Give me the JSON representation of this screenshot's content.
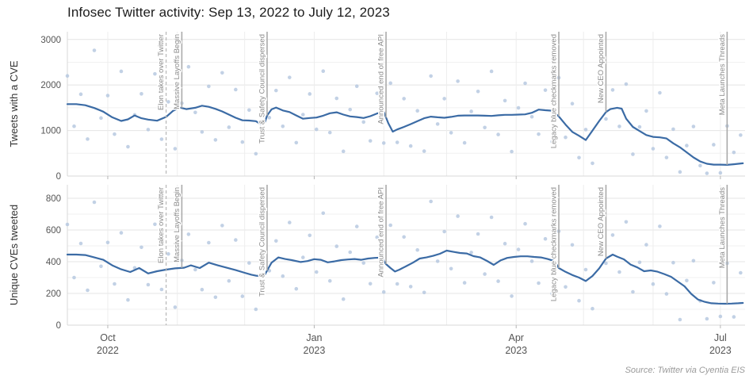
{
  "title": "Infosec Twitter activity: Sep 13, 2022 to July 12, 2023",
  "source": "Source: Twitter via Cyentia EIS",
  "colors": {
    "trend": "#3b6ba5",
    "points": "#b3c5de",
    "event_line": "#aaaaaa",
    "event_line_dashed": "#bbbbbb",
    "event_label": "#8a8a8a",
    "grid_major": "#e4e4e4",
    "grid_minor": "#f1f1f1",
    "grid_vertical": "#ededed",
    "spine": "#d8d8d8",
    "tick_mark": "#b5b5b5",
    "tick_label": "#555555",
    "axis_title": "#333333",
    "title_color": "#1c1c1c",
    "source_color": "#9a9a9a"
  },
  "x_axis": {
    "start_date": "2022-09-13",
    "end_date": "2023-07-12",
    "total_days": 302,
    "month_start_days": [
      18,
      49,
      79,
      110,
      141,
      169,
      200,
      230,
      261,
      291
    ],
    "major_ticks": [
      {
        "day": 18,
        "month": "Oct",
        "year": "2022"
      },
      {
        "day": 110,
        "month": "Jan",
        "year": "2023"
      },
      {
        "day": 200,
        "month": "Apr",
        "year": "2023"
      },
      {
        "day": 291,
        "month": "Jul",
        "year": "2023"
      }
    ]
  },
  "events": [
    {
      "label": "Elon takes over Twitter",
      "day": 44,
      "line": "dashed"
    },
    {
      "label": "Massive Layoffs Begin",
      "day": 51,
      "line": "solid"
    },
    {
      "label": "Trust & Safety Council dispersed",
      "day": 89,
      "line": "solid"
    },
    {
      "label": "Announced end of free API",
      "day": 142,
      "line": "solid"
    },
    {
      "label": "Legacy blue checkmarks removed",
      "day": 219,
      "line": "solid"
    },
    {
      "label": "New CEO Appointed",
      "day": 240,
      "line": "solid"
    },
    {
      "label": "Meta Launches Threads",
      "day": 294,
      "line": "solid"
    }
  ],
  "chart_data": [
    {
      "type": "scatter+line",
      "name": "tweets-with-a-cve",
      "ylabel": "Tweets with a CVE",
      "ylim": [
        0,
        3170
      ],
      "yticks": [
        0,
        1000,
        2000,
        3000
      ],
      "yminor_step": 500,
      "trend": {
        "x": [
          0,
          4,
          8,
          12,
          16,
          20,
          24,
          27,
          30,
          33,
          36,
          40,
          44,
          47,
          50,
          53,
          57,
          60,
          63,
          66,
          69,
          72,
          75,
          78,
          81,
          84,
          86,
          88,
          89,
          91,
          93,
          96,
          99,
          102,
          105,
          108,
          111,
          114,
          117,
          120,
          123,
          126,
          129,
          132,
          135,
          138,
          141,
          143,
          145,
          147,
          150,
          153,
          156,
          159,
          162,
          165,
          168,
          171,
          174,
          177,
          180,
          183,
          186,
          189,
          192,
          195,
          198,
          201,
          204,
          207,
          210,
          213,
          216,
          219,
          222,
          225,
          228,
          231,
          234,
          237,
          240,
          242,
          245,
          247,
          249,
          252,
          255,
          258,
          261,
          264,
          267,
          270,
          273,
          276,
          279,
          282,
          285,
          288,
          291,
          294,
          297,
          301
        ],
        "y": [
          1580,
          1580,
          1555,
          1495,
          1415,
          1290,
          1210,
          1245,
          1330,
          1270,
          1240,
          1215,
          1300,
          1430,
          1505,
          1470,
          1500,
          1545,
          1520,
          1475,
          1420,
          1350,
          1280,
          1225,
          1220,
          1205,
          1145,
          1180,
          1330,
          1465,
          1505,
          1440,
          1405,
          1330,
          1260,
          1275,
          1285,
          1325,
          1380,
          1400,
          1350,
          1310,
          1295,
          1275,
          1315,
          1375,
          1410,
          1160,
          975,
          1025,
          1080,
          1140,
          1205,
          1270,
          1305,
          1290,
          1280,
          1300,
          1325,
          1330,
          1330,
          1330,
          1325,
          1320,
          1335,
          1345,
          1345,
          1350,
          1355,
          1390,
          1460,
          1445,
          1435,
          1310,
          1130,
          970,
          885,
          790,
          1000,
          1210,
          1405,
          1470,
          1500,
          1480,
          1260,
          1080,
          990,
          900,
          860,
          850,
          825,
          720,
          630,
          520,
          410,
          320,
          270,
          250,
          250,
          245,
          260,
          280
        ]
      },
      "points": [
        [
          0,
          2200
        ],
        [
          3,
          1094
        ],
        [
          6,
          1797
        ],
        [
          9,
          812
        ],
        [
          12,
          2760
        ],
        [
          15,
          1274
        ],
        [
          18,
          1767
        ],
        [
          21,
          920
        ],
        [
          24,
          2300
        ],
        [
          27,
          644
        ],
        [
          30,
          1344
        ],
        [
          33,
          1806
        ],
        [
          36,
          1021
        ],
        [
          39,
          2244
        ],
        [
          42,
          810
        ],
        [
          45,
          1630
        ],
        [
          48,
          600
        ],
        [
          51,
          1601
        ],
        [
          54,
          2400
        ],
        [
          57,
          1397
        ],
        [
          60,
          969
        ],
        [
          63,
          1970
        ],
        [
          66,
          794
        ],
        [
          69,
          2268
        ],
        [
          72,
          1072
        ],
        [
          75,
          1899
        ],
        [
          78,
          747
        ],
        [
          81,
          1449
        ],
        [
          84,
          490
        ],
        [
          87,
          2211
        ],
        [
          90,
          1283
        ],
        [
          93,
          1879
        ],
        [
          96,
          1092
        ],
        [
          99,
          2166
        ],
        [
          102,
          733
        ],
        [
          105,
          1350
        ],
        [
          108,
          1803
        ],
        [
          111,
          1026
        ],
        [
          114,
          2304
        ],
        [
          117,
          956
        ],
        [
          120,
          1706
        ],
        [
          123,
          543
        ],
        [
          126,
          1460
        ],
        [
          129,
          1973
        ],
        [
          132,
          1186
        ],
        [
          135,
          773
        ],
        [
          138,
          1817
        ],
        [
          141,
          724
        ],
        [
          144,
          2041
        ],
        [
          147,
          740
        ],
        [
          150,
          1700
        ],
        [
          153,
          660
        ],
        [
          156,
          1433
        ],
        [
          159,
          547
        ],
        [
          162,
          2196
        ],
        [
          165,
          1143
        ],
        [
          168,
          1700
        ],
        [
          171,
          951
        ],
        [
          174,
          2083
        ],
        [
          177,
          730
        ],
        [
          180,
          1420
        ],
        [
          183,
          1859
        ],
        [
          186,
          1066
        ],
        [
          189,
          2300
        ],
        [
          192,
          913
        ],
        [
          195,
          1656
        ],
        [
          198,
          537
        ],
        [
          201,
          1497
        ],
        [
          204,
          2037
        ],
        [
          207,
          1302
        ],
        [
          210,
          920
        ],
        [
          213,
          1887
        ],
        [
          216,
          754
        ],
        [
          219,
          2160
        ],
        [
          222,
          850
        ],
        [
          225,
          1590
        ],
        [
          228,
          404
        ],
        [
          231,
          1020
        ],
        [
          234,
          280
        ],
        [
          237,
          2100
        ],
        [
          240,
          1255
        ],
        [
          243,
          1891
        ],
        [
          246,
          1090
        ],
        [
          249,
          2020
        ],
        [
          252,
          480
        ],
        [
          255,
          1080
        ],
        [
          258,
          1430
        ],
        [
          261,
          601
        ],
        [
          264,
          1828
        ],
        [
          267,
          407
        ],
        [
          270,
          1030
        ],
        [
          273,
          90
        ],
        [
          276,
          669
        ],
        [
          279,
          1088
        ],
        [
          282,
          229
        ],
        [
          285,
          60
        ],
        [
          288,
          689
        ],
        [
          291,
          70
        ],
        [
          294,
          1100
        ],
        [
          297,
          520
        ],
        [
          300,
          899
        ]
      ]
    },
    {
      "type": "scatter+line",
      "name": "unique-cves-tweeted",
      "ylabel": "Unique CVEs tweeted",
      "ylim": [
        0,
        885
      ],
      "yticks": [
        0,
        200,
        400,
        600,
        800
      ],
      "yminor_step": 100,
      "trend": {
        "x": [
          0,
          4,
          8,
          12,
          16,
          20,
          24,
          28,
          32,
          36,
          40,
          44,
          48,
          52,
          55,
          59,
          63,
          67,
          71,
          75,
          79,
          82,
          84,
          86,
          88,
          91,
          94,
          97,
          100,
          104,
          107,
          110,
          113,
          116,
          119,
          122,
          125,
          128,
          131,
          134,
          137,
          140,
          142,
          144,
          146,
          148,
          151,
          154,
          157,
          160,
          163,
          166,
          169,
          172,
          175,
          178,
          181,
          184,
          187,
          190,
          193,
          196,
          199,
          202,
          205,
          208,
          211,
          214,
          217,
          219,
          222,
          225,
          228,
          231,
          234,
          237,
          240,
          243,
          245,
          248,
          251,
          254,
          257,
          260,
          263,
          266,
          269,
          272,
          275,
          278,
          281,
          284,
          287,
          290,
          293,
          296,
          299,
          301
        ],
        "y": [
          445,
          445,
          442,
          427,
          412,
          377,
          352,
          335,
          360,
          326,
          340,
          350,
          358,
          362,
          377,
          360,
          394,
          377,
          362,
          347,
          330,
          318,
          312,
          310,
          318,
          394,
          427,
          417,
          410,
          398,
          404,
          416,
          412,
          396,
          402,
          410,
          414,
          417,
          412,
          420,
          424,
          426,
          385,
          360,
          338,
          350,
          372,
          394,
          420,
          427,
          437,
          450,
          470,
          462,
          455,
          452,
          435,
          427,
          405,
          380,
          408,
          424,
          430,
          434,
          434,
          430,
          427,
          417,
          404,
          360,
          336,
          316,
          300,
          278,
          310,
          358,
          420,
          445,
          432,
          415,
          382,
          364,
          340,
          345,
          337,
          322,
          305,
          275,
          245,
          197,
          162,
          147,
          138,
          136,
          135,
          136,
          138,
          140
        ]
      },
      "points": [
        [
          0,
          635
        ],
        [
          3,
          300
        ],
        [
          6,
          515
        ],
        [
          9,
          220
        ],
        [
          12,
          775
        ],
        [
          15,
          371
        ],
        [
          18,
          521
        ],
        [
          21,
          260
        ],
        [
          24,
          582
        ],
        [
          27,
          159
        ],
        [
          30,
          361
        ],
        [
          33,
          491
        ],
        [
          36,
          255
        ],
        [
          39,
          636
        ],
        [
          42,
          225
        ],
        [
          45,
          449
        ],
        [
          48,
          113
        ],
        [
          51,
          408
        ],
        [
          54,
          573
        ],
        [
          57,
          350
        ],
        [
          60,
          224
        ],
        [
          63,
          520
        ],
        [
          66,
          176
        ],
        [
          69,
          628
        ],
        [
          72,
          279
        ],
        [
          75,
          537
        ],
        [
          78,
          182
        ],
        [
          81,
          392
        ],
        [
          84,
          100
        ],
        [
          87,
          616
        ],
        [
          90,
          343
        ],
        [
          93,
          531
        ],
        [
          96,
          309
        ],
        [
          99,
          647
        ],
        [
          102,
          229
        ],
        [
          105,
          427
        ],
        [
          108,
          566
        ],
        [
          111,
          335
        ],
        [
          114,
          706
        ],
        [
          117,
          279
        ],
        [
          120,
          497
        ],
        [
          123,
          164
        ],
        [
          126,
          460
        ],
        [
          129,
          622
        ],
        [
          132,
          392
        ],
        [
          135,
          261
        ],
        [
          138,
          554
        ],
        [
          141,
          209
        ],
        [
          144,
          630
        ],
        [
          147,
          260
        ],
        [
          150,
          556
        ],
        [
          153,
          243
        ],
        [
          156,
          474
        ],
        [
          159,
          206
        ],
        [
          162,
          780
        ],
        [
          165,
          403
        ],
        [
          168,
          590
        ],
        [
          171,
          356
        ],
        [
          174,
          687
        ],
        [
          177,
          267
        ],
        [
          180,
          458
        ],
        [
          183,
          575
        ],
        [
          186,
          322
        ],
        [
          189,
          680
        ],
        [
          192,
          277
        ],
        [
          195,
          514
        ],
        [
          198,
          183
        ],
        [
          201,
          477
        ],
        [
          204,
          639
        ],
        [
          207,
          403
        ],
        [
          210,
          265
        ],
        [
          213,
          544
        ],
        [
          216,
          198
        ],
        [
          219,
          592
        ],
        [
          222,
          241
        ],
        [
          225,
          506
        ],
        [
          228,
          154
        ],
        [
          231,
          350
        ],
        [
          234,
          104
        ],
        [
          237,
          622
        ],
        [
          240,
          390
        ],
        [
          243,
          568
        ],
        [
          246,
          335
        ],
        [
          249,
          651
        ],
        [
          252,
          210
        ],
        [
          255,
          396
        ],
        [
          258,
          507
        ],
        [
          261,
          259
        ],
        [
          264,
          623
        ],
        [
          267,
          197
        ],
        [
          270,
          394
        ],
        [
          273,
          35
        ],
        [
          276,
          281
        ],
        [
          279,
          406
        ],
        [
          282,
          153
        ],
        [
          285,
          40
        ],
        [
          288,
          268
        ],
        [
          291,
          55
        ],
        [
          294,
          390
        ],
        [
          297,
          52
        ],
        [
          300,
          330
        ]
      ]
    }
  ]
}
